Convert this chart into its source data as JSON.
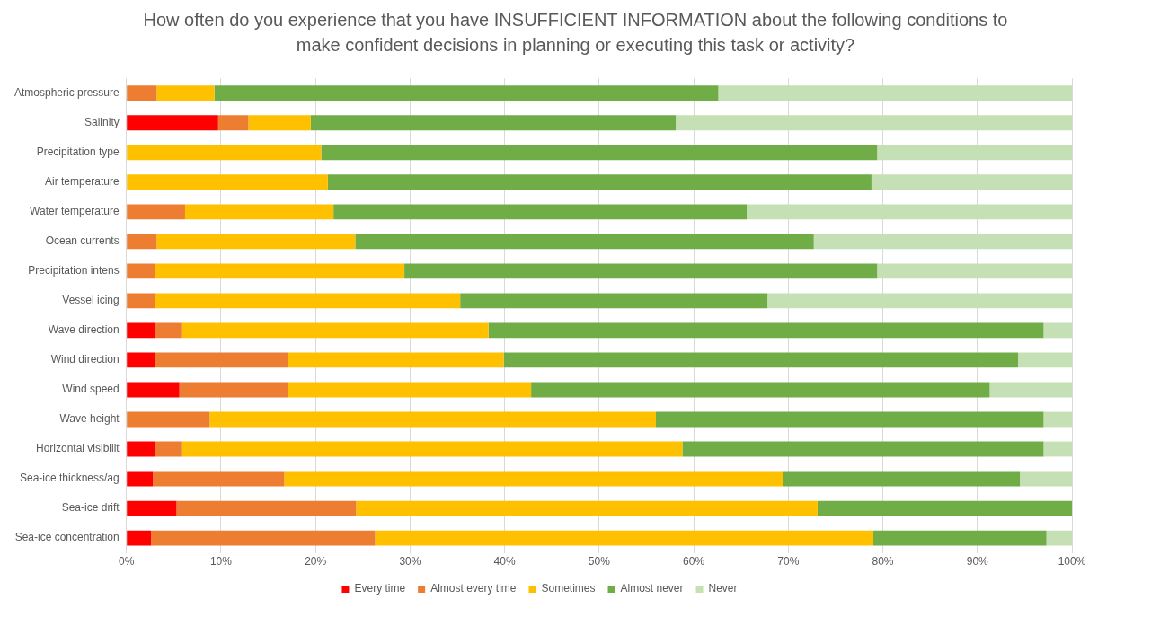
{
  "chart_data": {
    "type": "bar",
    "orientation": "horizontal",
    "stacked": true,
    "title": "How often do you experience that you have INSUFFICIENT INFORMATION about the following conditions to make confident decisions in planning or executing this task or activity?",
    "categories": [
      "Atmospheric pressure",
      "Salinity",
      "Precipitation type",
      "Air temperature",
      "Water temperature",
      "Ocean currents",
      "Precipitation intens",
      "Vessel icing",
      "Wave direction",
      "Wind direction",
      "Wind speed",
      "Wave height",
      "Horizontal visibilit",
      "Sea-ice thickness/ag",
      "Sea-ice drift",
      "Sea-ice concentration"
    ],
    "series": [
      {
        "name": "Every time",
        "color": "#ff0000",
        "values": [
          0,
          9.7,
          0,
          0,
          0,
          0,
          0,
          0,
          3,
          3,
          5.6,
          0,
          3,
          2.8,
          5.3,
          2.6
        ]
      },
      {
        "name": "Almost every time",
        "color": "#ed7d31",
        "values": [
          3.2,
          3.2,
          0,
          0,
          6.2,
          3.2,
          3,
          3,
          2.8,
          14.1,
          11.5,
          8.8,
          2.8,
          13.9,
          19,
          23.7
        ]
      },
      {
        "name": "Sometimes",
        "color": "#ffc000",
        "values": [
          6.1,
          6.6,
          20.6,
          21.3,
          15.7,
          21,
          26.4,
          32.3,
          32.5,
          22.8,
          25.7,
          47.2,
          53,
          52.7,
          48.8,
          52.7
        ]
      },
      {
        "name": "Almost never",
        "color": "#70ad47",
        "values": [
          53.3,
          38.6,
          58.8,
          57.5,
          43.7,
          48.5,
          50,
          32.5,
          58.7,
          54.4,
          48.5,
          41,
          38.2,
          25.1,
          26.9,
          18.3
        ]
      },
      {
        "name": "Never",
        "color": "#c5e0b4",
        "values": [
          37.4,
          41.9,
          20.6,
          21.2,
          34.4,
          27.3,
          20.6,
          32.2,
          3,
          5.7,
          8.7,
          3,
          3,
          5.5,
          0,
          2.7
        ]
      }
    ],
    "xlim": [
      0,
      100
    ],
    "xticks": [
      {
        "value": 0,
        "label": "0%"
      },
      {
        "value": 10,
        "label": "10%"
      },
      {
        "value": 20,
        "label": "20%"
      },
      {
        "value": 30,
        "label": "30%"
      },
      {
        "value": 40,
        "label": "40%"
      },
      {
        "value": 50,
        "label": "50%"
      },
      {
        "value": 60,
        "label": "60%"
      },
      {
        "value": 70,
        "label": "70%"
      },
      {
        "value": 80,
        "label": "80%"
      },
      {
        "value": 90,
        "label": "90%"
      },
      {
        "value": 100,
        "label": "100%"
      }
    ],
    "grid": "x",
    "legend": "bottom"
  }
}
